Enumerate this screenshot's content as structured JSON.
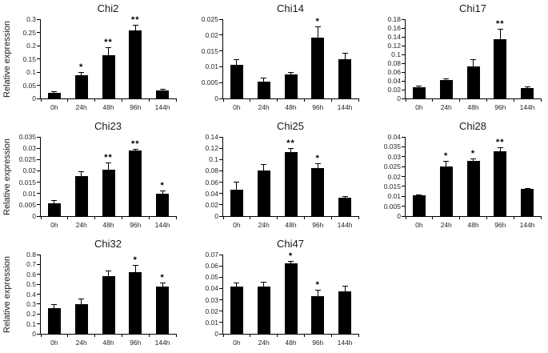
{
  "style": {
    "bar_color": "#000000",
    "axis_color": "#000000",
    "text_color": "#262626",
    "background": "#ffffff"
  },
  "chart_data": [
    {
      "type": "bar",
      "title": "Chi2",
      "ylabel": "Relative expression",
      "categories": [
        "0h",
        "24h",
        "48h",
        "96h",
        "144h"
      ],
      "values": [
        0.021,
        0.089,
        0.165,
        0.257,
        0.03
      ],
      "errors": [
        0.003,
        0.008,
        0.027,
        0.02,
        0.002
      ],
      "significance": [
        "",
        "*",
        "**",
        "**",
        ""
      ],
      "ylim": [
        0,
        0.3
      ],
      "ystep": 0.05,
      "grid": false,
      "legend": "none"
    },
    {
      "type": "bar",
      "title": "Chi14",
      "ylabel": "",
      "categories": [
        "0h",
        "24h",
        "48h",
        "96h",
        "144h"
      ],
      "values": [
        0.0105,
        0.0053,
        0.0077,
        0.0193,
        0.0124
      ],
      "errors": [
        0.0015,
        0.001,
        0.0003,
        0.0033,
        0.0018
      ],
      "significance": [
        "",
        "",
        "",
        "*",
        ""
      ],
      "ylim": [
        0,
        0.025
      ],
      "ystep": 0.005,
      "grid": false,
      "legend": "none"
    },
    {
      "type": "bar",
      "title": "Chi17",
      "ylabel": "",
      "categories": [
        "0h",
        "24h",
        "48h",
        "96h",
        "144h"
      ],
      "values": [
        0.026,
        0.042,
        0.072,
        0.134,
        0.023
      ],
      "errors": [
        0.002,
        0.002,
        0.016,
        0.022,
        0.002
      ],
      "significance": [
        "",
        "",
        "",
        "**",
        ""
      ],
      "ylim": [
        0,
        0.18
      ],
      "ystep": 0.02,
      "grid": false,
      "legend": "none"
    },
    {
      "type": "bar",
      "title": "Chi23",
      "ylabel": "Relative expression",
      "categories": [
        "0h",
        "24h",
        "48h",
        "96h",
        "144h"
      ],
      "values": [
        0.0057,
        0.0178,
        0.0205,
        0.029,
        0.01
      ],
      "errors": [
        0.001,
        0.0018,
        0.003,
        0.0005,
        0.0008
      ],
      "significance": [
        "",
        "",
        "**",
        "**",
        "*"
      ],
      "ylim": [
        0,
        0.035
      ],
      "ystep": 0.005,
      "grid": false,
      "legend": "none"
    },
    {
      "type": "bar",
      "title": "Chi25",
      "ylabel": "",
      "categories": [
        "0h",
        "24h",
        "48h",
        "96h",
        "144h"
      ],
      "values": [
        0.047,
        0.081,
        0.113,
        0.085,
        0.032
      ],
      "errors": [
        0.012,
        0.009,
        0.006,
        0.007,
        0.002
      ],
      "significance": [
        "",
        "",
        "**",
        "*",
        ""
      ],
      "ylim": [
        0,
        0.14
      ],
      "ystep": 0.02,
      "grid": false,
      "legend": "none"
    },
    {
      "type": "bar",
      "title": "Chi28",
      "ylabel": "",
      "categories": [
        "0h",
        "24h",
        "48h",
        "96h",
        "144h"
      ],
      "values": [
        0.0104,
        0.0252,
        0.028,
        0.0328,
        0.0137
      ],
      "errors": [
        0.0003,
        0.0022,
        0.0005,
        0.0015,
        0.0002
      ],
      "significance": [
        "",
        "*",
        "*",
        "**",
        ""
      ],
      "ylim": [
        0,
        0.04
      ],
      "ystep": 0.005,
      "grid": false,
      "legend": "none"
    },
    {
      "type": "bar",
      "title": "Chi32",
      "ylabel": "Relative expression",
      "categories": [
        "0h",
        "24h",
        "48h",
        "96h",
        "144h"
      ],
      "values": [
        0.26,
        0.3,
        0.58,
        0.62,
        0.48
      ],
      "errors": [
        0.03,
        0.045,
        0.05,
        0.07,
        0.03
      ],
      "significance": [
        "",
        "",
        "",
        "*",
        "*"
      ],
      "ylim": [
        0,
        0.8
      ],
      "ystep": 0.1,
      "grid": false,
      "legend": "none"
    },
    {
      "type": "bar",
      "title": "Chi47",
      "ylabel": "",
      "categories": [
        "0h",
        "24h",
        "48h",
        "96h",
        "144h"
      ],
      "values": [
        0.0415,
        0.042,
        0.062,
        0.033,
        0.0375
      ],
      "errors": [
        0.003,
        0.0035,
        0.002,
        0.005,
        0.004
      ],
      "significance": [
        "",
        "",
        "*",
        "*",
        ""
      ],
      "ylim": [
        0,
        0.07
      ],
      "ystep": 0.01,
      "grid": false,
      "legend": "none"
    }
  ]
}
